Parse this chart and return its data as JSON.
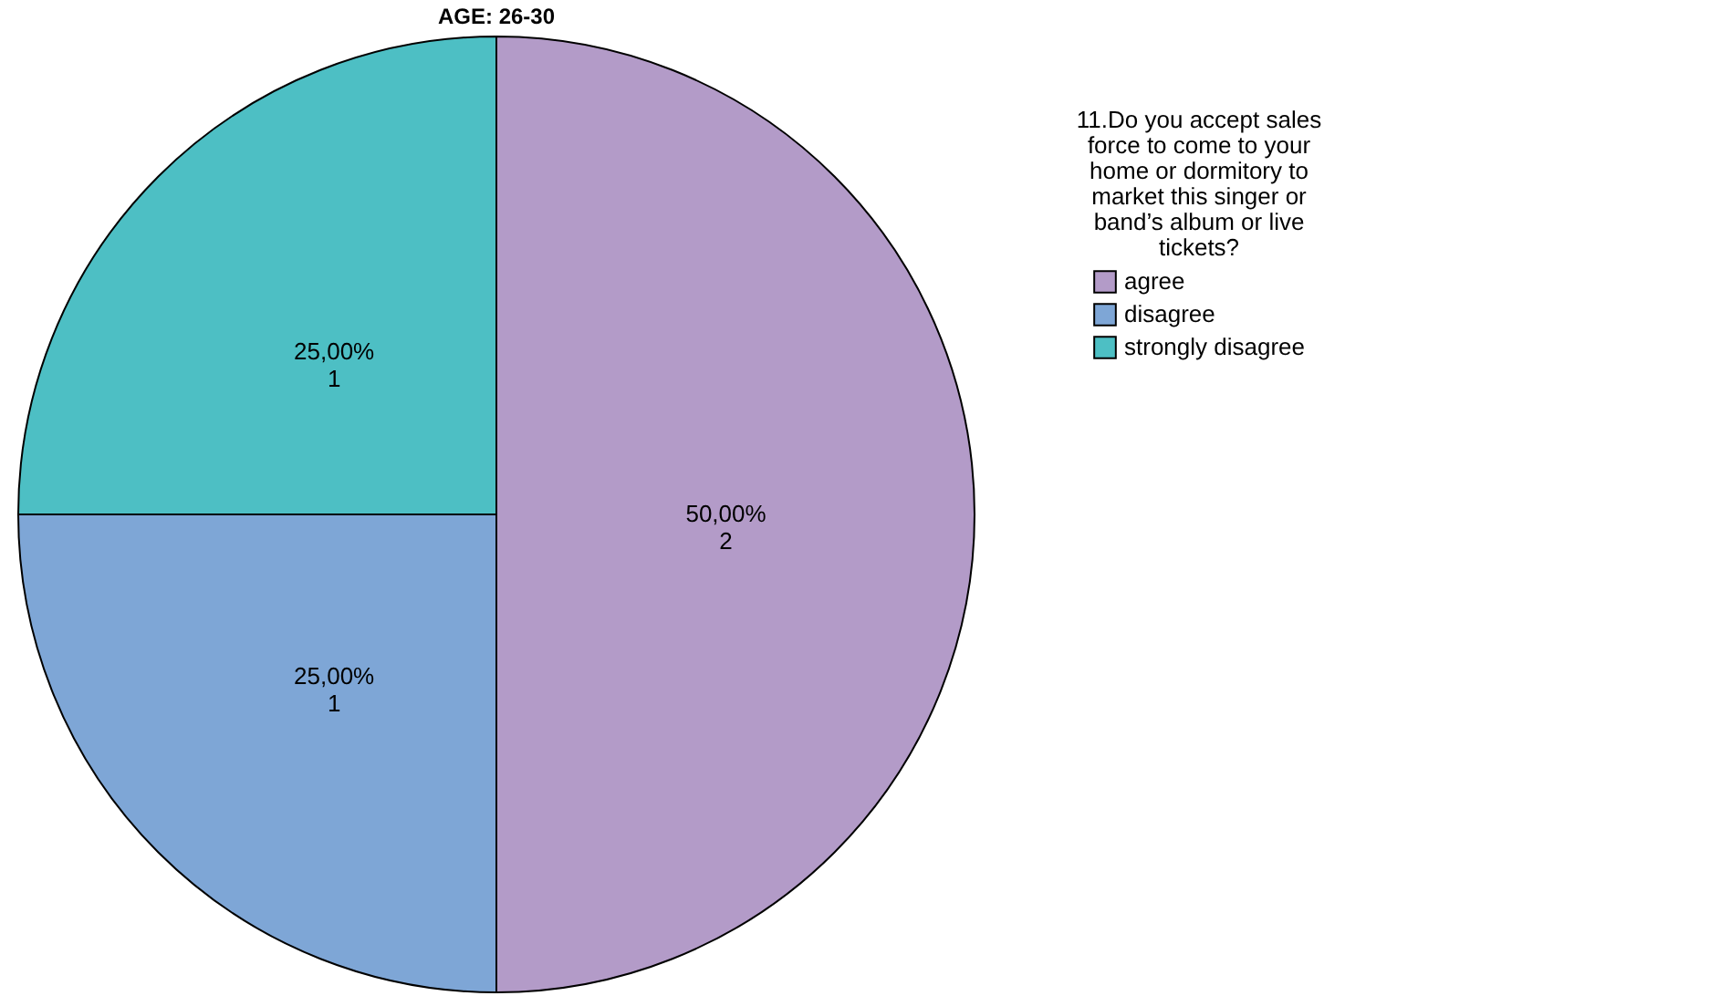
{
  "chart_data": {
    "type": "pie",
    "title": "AGE: 26-30",
    "legend_title": "11.Do you accept sales force to come to your home or dormitory to market this singer or band’s album or live tickets?",
    "categories": [
      "agree",
      "disagree",
      "strongly disagree"
    ],
    "values": [
      2,
      1,
      1
    ],
    "colors": [
      "#b39bc8",
      "#7ea6d6",
      "#4dbfc4"
    ],
    "value_labels": [
      "50,00%\n2",
      "25,00%\n1",
      "25,00%\n1"
    ],
    "legend": "top right"
  }
}
